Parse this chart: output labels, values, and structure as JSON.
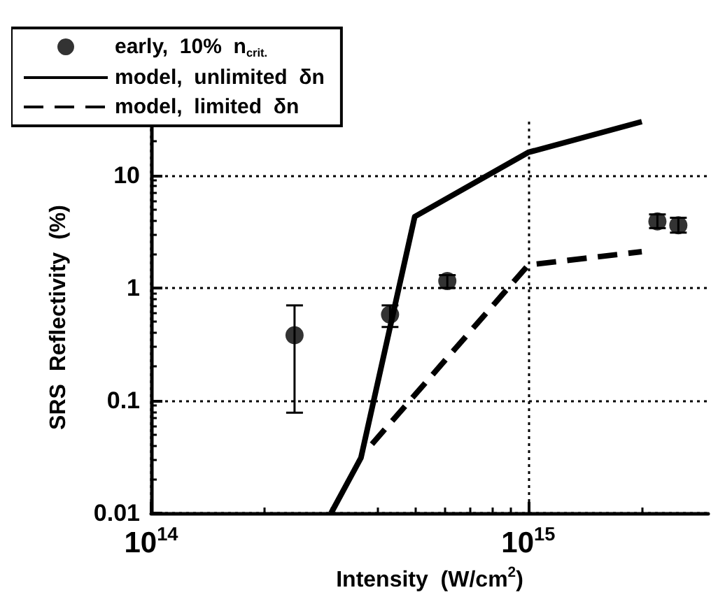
{
  "chart_data": {
    "type": "scatter",
    "xlabel": "Intensity  (W/cm$^{2}$)",
    "ylabel": "SRS  Reflectivity  (%)",
    "log": "xy",
    "grid": true,
    "legend": "top left",
    "xlim": [
      100000000000000.0,
      3000000000000000.0
    ],
    "xticks": [
      {
        "value": 100000000000000.0,
        "label": "10$^{14}$"
      },
      {
        "value": 1000000000000000.0,
        "label": "10$^{15}$"
      }
    ],
    "ylim": [
      0.01,
      30
    ],
    "yticks": [
      0.01,
      0.1,
      1,
      10
    ],
    "series": [
      {
        "name": "early,  10%  n$_{crit.}$",
        "type": "scatter",
        "marker": "circle",
        "color": "#000000",
        "x": [
          240000000000000.0,
          430000000000000.0,
          610000000000000.0,
          2200000000000000.0,
          2500000000000000.0
        ],
        "values": [
          0.38,
          0.58,
          1.15,
          3.9,
          3.6
        ],
        "errors": [
          [
            0.078,
            0.7
          ],
          [
            0.45,
            0.7
          ],
          [
            1.0,
            1.3
          ],
          [
            3.4,
            4.5
          ],
          [
            3.1,
            4.2
          ]
        ]
      },
      {
        "name": "model,  unlimited  δn",
        "type": "line",
        "line_style": "solid",
        "marker": "none",
        "color": "#000000",
        "x": [
          300000000000000.0,
          360000000000000.0,
          500000000000000.0,
          1000000000000000.0,
          2000000000000000.0
        ],
        "values": [
          0.01,
          0.031,
          4.3,
          16,
          30
        ]
      },
      {
        "name": "model,  limited  δn",
        "type": "line",
        "line_style": "dashed",
        "marker": "none",
        "color": "#000000",
        "x": [
          385000000000000.0,
          1000000000000000.0,
          2000000000000000.0
        ],
        "values": [
          0.041,
          1.6,
          2.1
        ]
      }
    ]
  }
}
